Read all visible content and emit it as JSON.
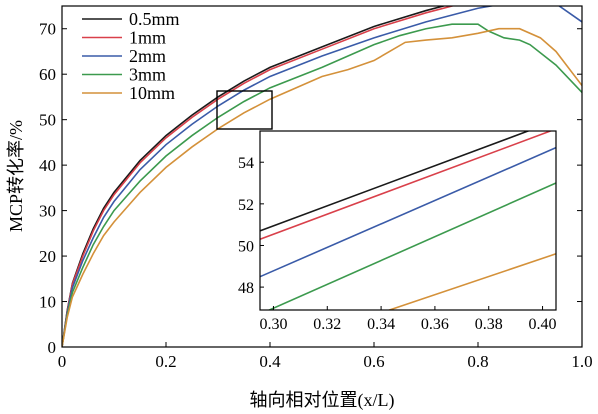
{
  "chart_data": [
    {
      "type": "line",
      "xlabel": "轴向相对位置(x/L)",
      "ylabel": "MCP转化率/%",
      "xlim": [
        0,
        1.0
      ],
      "ylim": [
        0,
        75
      ],
      "xticks": [
        "0",
        "0.2",
        "0.4",
        "0.6",
        "0.8",
        "1.0"
      ],
      "yticks": [
        "0",
        "10",
        "20",
        "30",
        "40",
        "50",
        "60",
        "70"
      ],
      "grid": false,
      "legend_position": "top-left",
      "series": [
        {
          "name": "0.5mm",
          "color": "#1a1a1a",
          "x": [
            0,
            0.01,
            0.02,
            0.04,
            0.06,
            0.08,
            0.1,
            0.15,
            0.2,
            0.25,
            0.3,
            0.35,
            0.4,
            0.5,
            0.6,
            0.7,
            0.8,
            0.9,
            1.0
          ],
          "y": [
            0,
            8,
            14,
            20.5,
            26,
            30.5,
            34,
            41,
            46.5,
            51,
            55,
            58.5,
            61.5,
            66,
            70.5,
            74,
            77,
            79.5,
            82
          ]
        },
        {
          "name": "1mm",
          "color": "#d9404a",
          "x": [
            0,
            0.01,
            0.02,
            0.04,
            0.06,
            0.08,
            0.1,
            0.15,
            0.2,
            0.25,
            0.3,
            0.35,
            0.4,
            0.5,
            0.6,
            0.7,
            0.8,
            0.9,
            1.0
          ],
          "y": [
            0,
            7.8,
            13.8,
            20,
            25.5,
            30,
            33.5,
            40.5,
            46,
            50.5,
            54.5,
            58,
            61,
            65.5,
            70,
            73.5,
            76.5,
            79,
            81.5
          ]
        },
        {
          "name": "2mm",
          "color": "#3a5ba8",
          "x": [
            0,
            0.01,
            0.02,
            0.04,
            0.06,
            0.08,
            0.1,
            0.15,
            0.2,
            0.25,
            0.3,
            0.35,
            0.4,
            0.5,
            0.6,
            0.7,
            0.8,
            0.85,
            0.9,
            0.95,
            1.0
          ],
          "y": [
            0,
            7.5,
            13,
            19,
            24,
            28.5,
            32,
            39,
            44.5,
            49,
            53,
            56.5,
            59.5,
            64,
            68,
            71.5,
            74.5,
            75.5,
            76,
            75.5,
            71.5
          ]
        },
        {
          "name": "3mm",
          "color": "#3c9a4e",
          "x": [
            0,
            0.01,
            0.02,
            0.04,
            0.06,
            0.08,
            0.1,
            0.15,
            0.2,
            0.25,
            0.3,
            0.35,
            0.4,
            0.5,
            0.6,
            0.65,
            0.7,
            0.75,
            0.8,
            0.82,
            0.85,
            0.88,
            0.9,
            0.95,
            1.0
          ],
          "y": [
            0,
            7,
            12,
            17.5,
            22.5,
            26.5,
            30,
            36.5,
            42,
            46.5,
            50.5,
            54,
            57,
            61.5,
            66.5,
            68.5,
            70,
            71,
            71,
            69.5,
            68,
            67.5,
            66.5,
            62,
            56
          ]
        },
        {
          "name": "10mm",
          "color": "#d4913a",
          "x": [
            0,
            0.01,
            0.02,
            0.04,
            0.06,
            0.08,
            0.1,
            0.15,
            0.2,
            0.25,
            0.3,
            0.35,
            0.4,
            0.45,
            0.5,
            0.55,
            0.6,
            0.63,
            0.66,
            0.7,
            0.75,
            0.8,
            0.84,
            0.88,
            0.92,
            0.95,
            1.0
          ],
          "y": [
            0,
            6.5,
            11,
            16,
            20.5,
            24.5,
            27.5,
            34,
            39.5,
            44,
            48,
            51.5,
            54.5,
            57,
            59.5,
            61,
            63,
            65,
            67,
            67.5,
            68,
            69,
            70,
            70,
            68,
            65,
            57.5
          ]
        }
      ]
    },
    {
      "type": "line",
      "role": "inset",
      "xlim": [
        0.295,
        0.405
      ],
      "ylim": [
        46.9,
        55.5
      ],
      "xticks": [
        "0.30",
        "0.32",
        "0.34",
        "0.36",
        "0.38",
        "0.40"
      ],
      "yticks": [
        "48",
        "50",
        "52",
        "54"
      ],
      "series": [
        {
          "name": "0.5mm",
          "color": "#1a1a1a",
          "x": [
            0.295,
            0.405
          ],
          "y": [
            50.7,
            56.0
          ]
        },
        {
          "name": "1mm",
          "color": "#d9404a",
          "x": [
            0.295,
            0.405
          ],
          "y": [
            50.3,
            55.6
          ]
        },
        {
          "name": "2mm",
          "color": "#3a5ba8",
          "x": [
            0.295,
            0.405
          ],
          "y": [
            48.5,
            54.7
          ]
        },
        {
          "name": "3mm",
          "color": "#3c9a4e",
          "x": [
            0.295,
            0.405
          ],
          "y": [
            46.7,
            53.0
          ]
        },
        {
          "name": "10mm",
          "color": "#d4913a",
          "x": [
            0.295,
            0.405
          ],
          "y": [
            44.8,
            49.6
          ]
        }
      ]
    }
  ]
}
